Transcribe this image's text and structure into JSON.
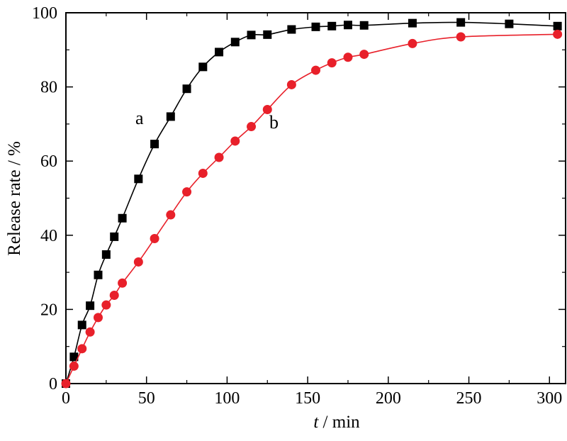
{
  "chart_data": {
    "type": "line",
    "xlabel_italic": "t",
    "xlabel_rest": " / min",
    "ylabel": "Release rate / %",
    "xlim": [
      0,
      310
    ],
    "ylim": [
      0,
      100
    ],
    "x_ticks": [
      0,
      50,
      100,
      150,
      200,
      250,
      300
    ],
    "y_ticks": [
      0,
      20,
      40,
      60,
      80,
      100
    ],
    "grid": false,
    "legend": "none",
    "series": [
      {
        "name": "a",
        "marker": "square",
        "color": "#000000",
        "x": [
          0,
          5,
          10,
          15,
          20,
          25,
          30,
          35,
          45,
          55,
          65,
          75,
          85,
          95,
          105,
          115,
          125,
          140,
          155,
          165,
          175,
          185,
          215,
          245,
          275,
          305
        ],
        "y": [
          0,
          7.2,
          15.8,
          21.0,
          29.3,
          34.8,
          39.6,
          44.6,
          55.2,
          64.6,
          72.0,
          79.5,
          85.4,
          89.4,
          92.1,
          94.0,
          94.1,
          95.5,
          96.2,
          96.4,
          96.7,
          96.6,
          97.2,
          97.4,
          97.0,
          96.4
        ]
      },
      {
        "name": "b",
        "marker": "circle",
        "color": "#e8202a",
        "x": [
          0,
          5,
          10,
          15,
          20,
          25,
          30,
          35,
          45,
          55,
          65,
          75,
          85,
          95,
          105,
          115,
          125,
          140,
          155,
          165,
          175,
          185,
          215,
          245,
          305
        ],
        "y": [
          0,
          4.7,
          9.4,
          13.9,
          17.8,
          21.2,
          23.8,
          27.1,
          32.8,
          39.1,
          45.5,
          51.7,
          56.7,
          61.0,
          65.4,
          69.3,
          73.9,
          80.6,
          84.5,
          86.5,
          88.0,
          88.8,
          91.7,
          93.5,
          94.2
        ]
      }
    ]
  }
}
